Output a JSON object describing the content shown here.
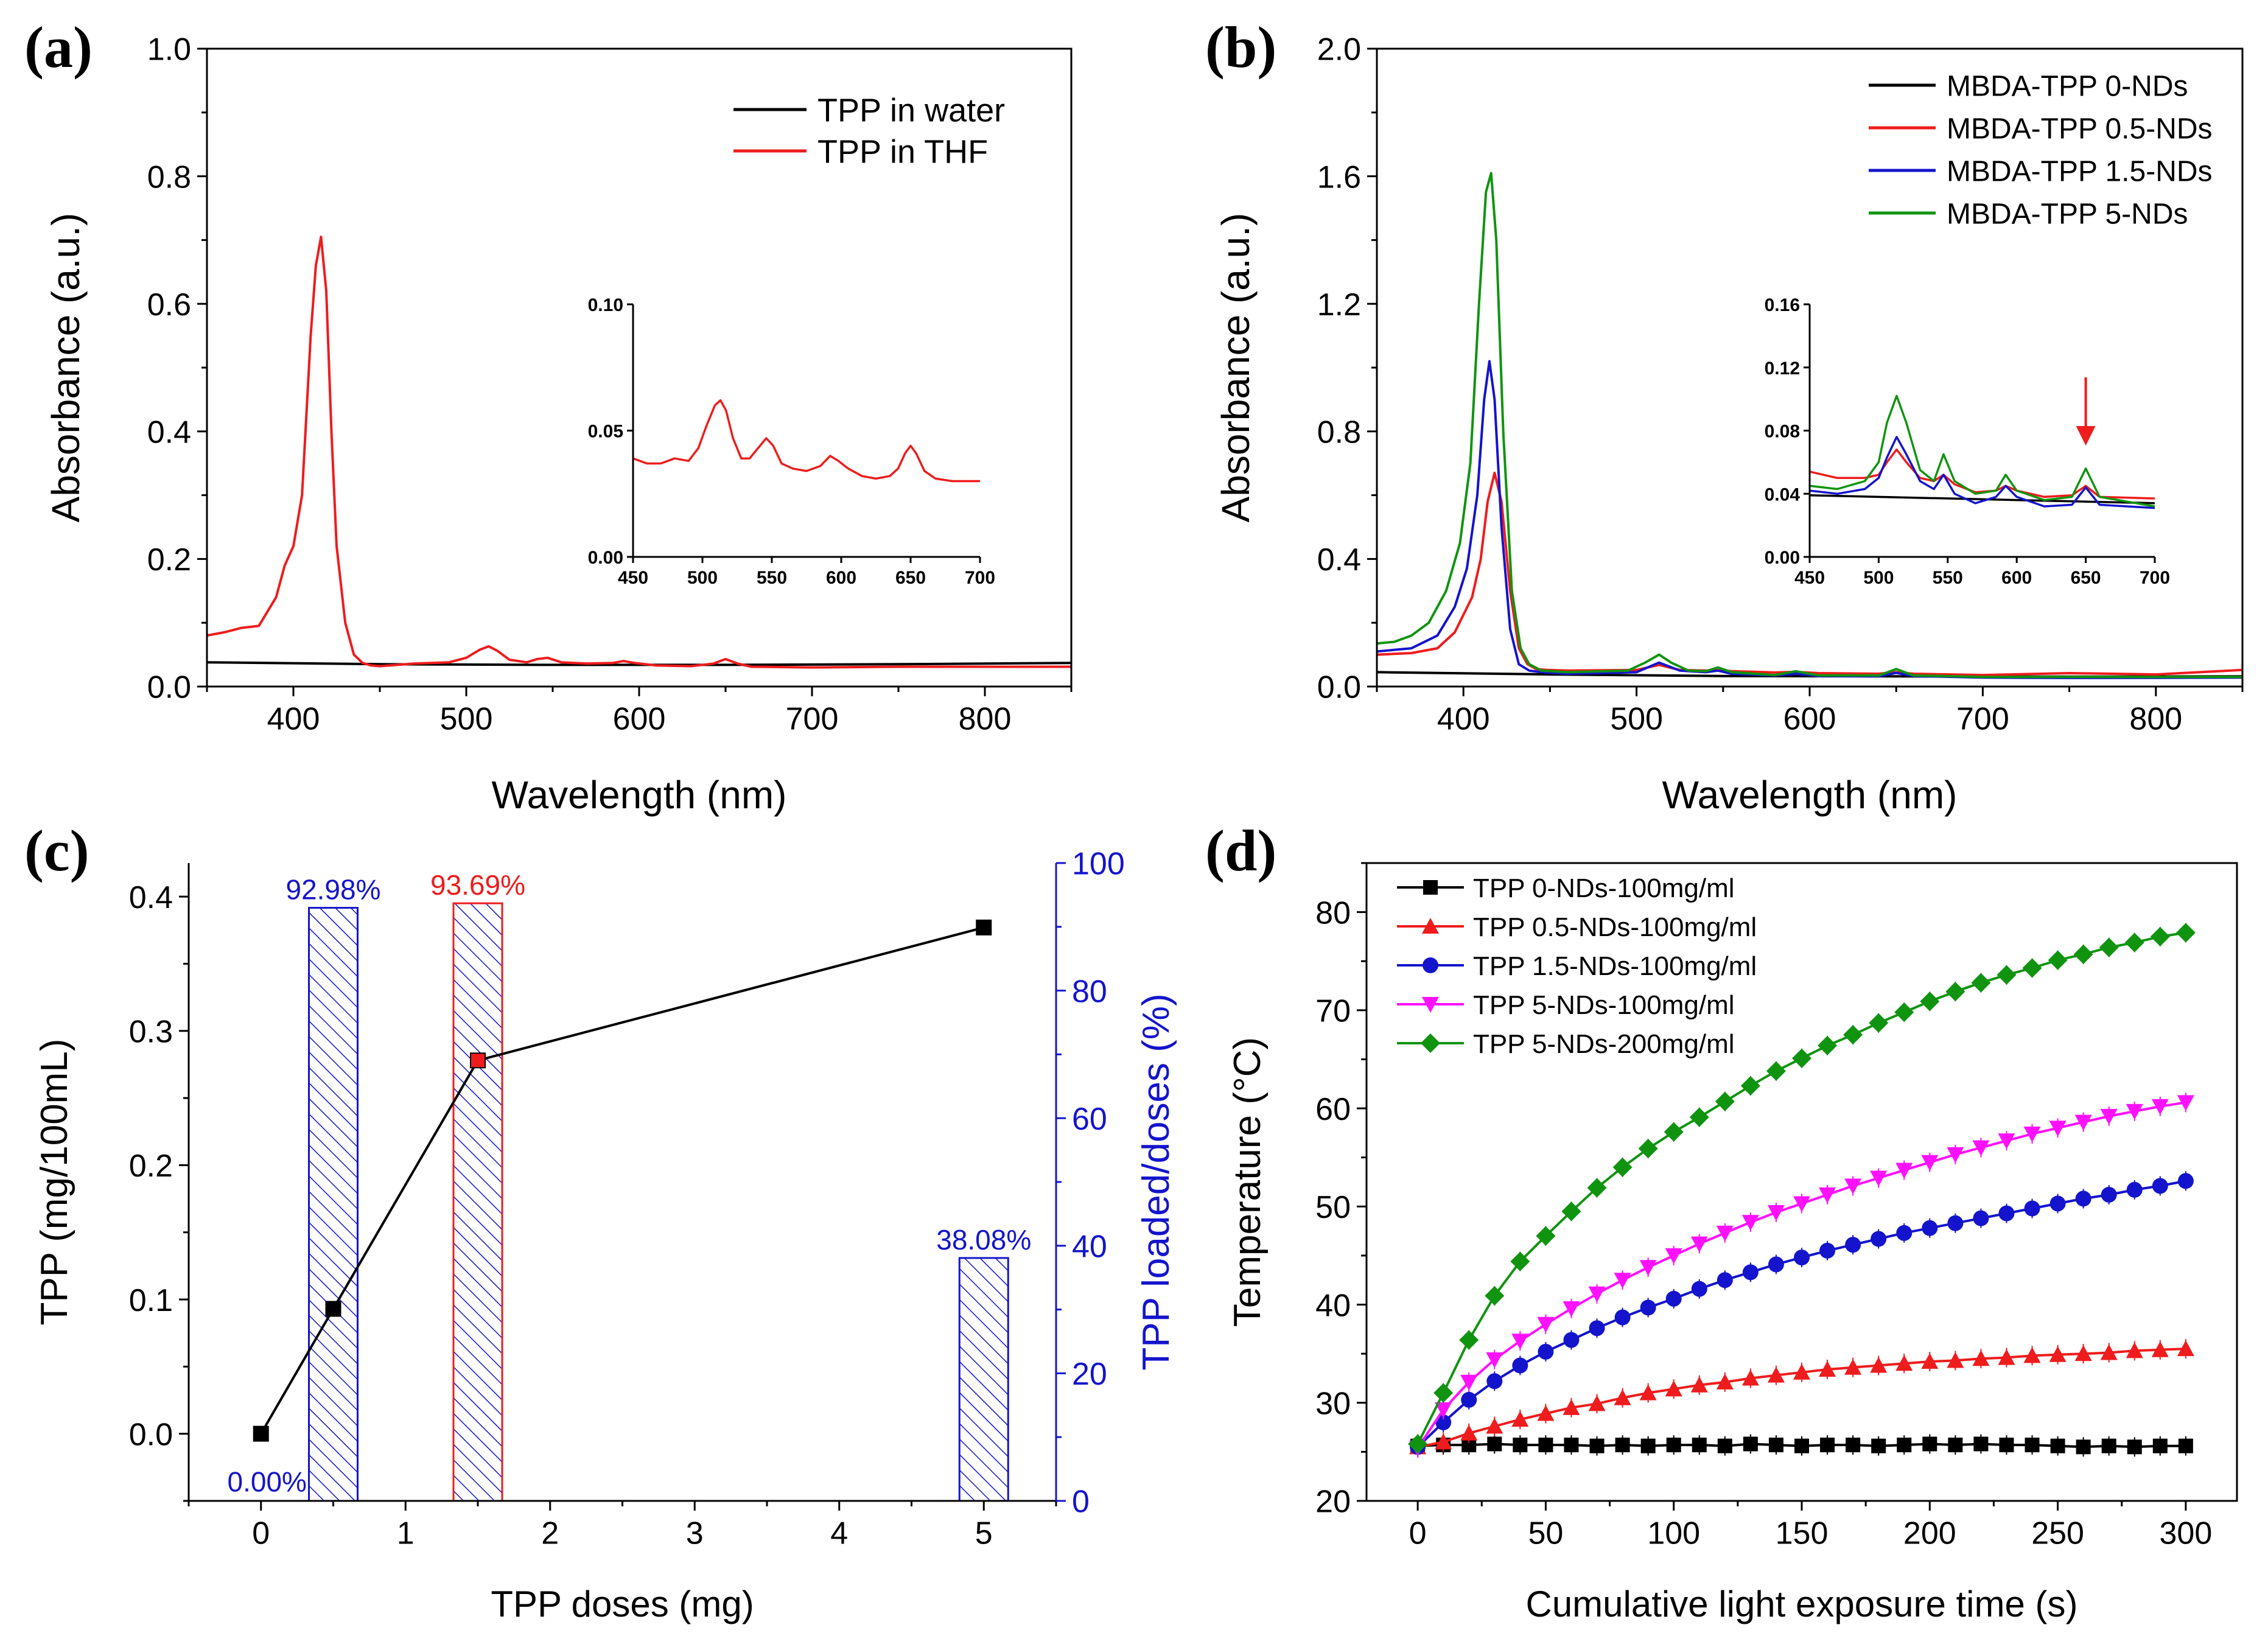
{
  "figure": {
    "panels": [
      "(a)",
      "(b)",
      "(c)",
      "(d)"
    ]
  },
  "chart_data": [
    {
      "id": "a",
      "type": "line",
      "label": "(a)",
      "xlabel": "Wavelength (nm)",
      "ylabel": "Absorbance (a.u.)",
      "xlim": [
        350,
        850
      ],
      "ylim": [
        0,
        1.0
      ],
      "xticks": [
        400,
        500,
        600,
        700,
        800
      ],
      "yticks": [
        0.0,
        0.2,
        0.4,
        0.6,
        0.8,
        1.0
      ],
      "ytick_labels": [
        "0.0",
        "0.2",
        "0.4",
        "0.6",
        "0.8",
        "1.0"
      ],
      "legend_position": "top-right",
      "series": [
        {
          "name": "TPP in water",
          "color": "#000000",
          "x": [
            350,
            450,
            550,
            650,
            750,
            850
          ],
          "y": [
            0.038,
            0.035,
            0.034,
            0.034,
            0.035,
            0.037
          ]
        },
        {
          "name": "TPP in THF",
          "color": "#ee1c1c",
          "x": [
            350,
            360,
            370,
            380,
            390,
            395,
            400,
            405,
            410,
            413,
            416,
            419,
            422,
            425,
            430,
            435,
            440,
            445,
            450,
            470,
            490,
            500,
            508,
            513,
            518,
            525,
            535,
            541,
            547,
            555,
            570,
            585,
            591,
            597,
            610,
            630,
            643,
            650,
            657,
            665,
            700,
            750,
            850
          ],
          "y": [
            0.08,
            0.085,
            0.092,
            0.095,
            0.14,
            0.19,
            0.22,
            0.3,
            0.55,
            0.66,
            0.705,
            0.62,
            0.4,
            0.22,
            0.1,
            0.05,
            0.037,
            0.033,
            0.032,
            0.036,
            0.038,
            0.045,
            0.058,
            0.063,
            0.056,
            0.042,
            0.038,
            0.043,
            0.045,
            0.038,
            0.036,
            0.037,
            0.04,
            0.037,
            0.033,
            0.032,
            0.036,
            0.043,
            0.036,
            0.031,
            0.03,
            0.031,
            0.031
          ]
        }
      ],
      "inset": {
        "xlim": [
          450,
          700
        ],
        "ylim": [
          0,
          0.1
        ],
        "xticks": [
          450,
          500,
          550,
          600,
          650,
          700
        ],
        "yticks": [
          0.0,
          0.05,
          0.1
        ],
        "ytick_labels": [
          "0.00",
          "0.05",
          "0.10"
        ],
        "series": [
          {
            "name": "TPP in THF",
            "color": "#ee1c1c",
            "x": [
              450,
              460,
              470,
              480,
              490,
              497,
              503,
              509,
              513,
              517,
              522,
              528,
              534,
              540,
              546,
              551,
              557,
              565,
              575,
              585,
              592,
              598,
              605,
              615,
              625,
              635,
              641,
              646,
              650,
              654,
              660,
              668,
              680,
              700
            ],
            "y": [
              0.039,
              0.037,
              0.037,
              0.039,
              0.038,
              0.043,
              0.052,
              0.06,
              0.062,
              0.058,
              0.047,
              0.039,
              0.039,
              0.043,
              0.047,
              0.044,
              0.037,
              0.035,
              0.034,
              0.036,
              0.04,
              0.038,
              0.035,
              0.032,
              0.031,
              0.032,
              0.035,
              0.041,
              0.044,
              0.041,
              0.034,
              0.031,
              0.03,
              0.03
            ]
          }
        ]
      }
    },
    {
      "id": "b",
      "type": "line",
      "label": "(b)",
      "xlabel": "Wavelength (nm)",
      "ylabel": "Absorbance (a.u.)",
      "xlim": [
        350,
        850
      ],
      "ylim": [
        0,
        2.0
      ],
      "xticks": [
        400,
        500,
        600,
        700,
        800
      ],
      "yticks": [
        0.0,
        0.4,
        0.8,
        1.2,
        1.6,
        2.0
      ],
      "ytick_labels": [
        "0.0",
        "0.4",
        "0.8",
        "1.2",
        "1.6",
        "2.0"
      ],
      "legend_position": "top-right",
      "series": [
        {
          "name": "MBDA-TPP 0-NDs",
          "color": "#000000",
          "x": [
            350,
            450,
            550,
            650,
            750,
            850
          ],
          "y": [
            0.045,
            0.038,
            0.033,
            0.032,
            0.031,
            0.032
          ]
        },
        {
          "name": "MBDA-TPP 0.5-NDs",
          "color": "#ee1c1c",
          "x": [
            350,
            370,
            385,
            395,
            405,
            410,
            414,
            418,
            422,
            427,
            432,
            437,
            442,
            448,
            460,
            500,
            513,
            525,
            540,
            547,
            555,
            580,
            592,
            605,
            640,
            650,
            660,
            700,
            750,
            800,
            850
          ],
          "y": [
            0.1,
            0.105,
            0.12,
            0.17,
            0.28,
            0.4,
            0.58,
            0.67,
            0.58,
            0.3,
            0.12,
            0.07,
            0.055,
            0.052,
            0.05,
            0.052,
            0.068,
            0.052,
            0.05,
            0.051,
            0.048,
            0.044,
            0.046,
            0.042,
            0.04,
            0.045,
            0.04,
            0.036,
            0.042,
            0.038,
            0.052
          ]
        },
        {
          "name": "MBDA-TPP 1.5-NDs",
          "color": "#1414cc",
          "x": [
            350,
            370,
            385,
            395,
            402,
            408,
            412,
            415,
            418,
            422,
            427,
            432,
            438,
            445,
            460,
            500,
            513,
            525,
            540,
            547,
            555,
            580,
            592,
            605,
            640,
            650,
            660,
            700,
            750,
            850
          ],
          "y": [
            0.11,
            0.12,
            0.16,
            0.25,
            0.37,
            0.6,
            0.9,
            1.02,
            0.9,
            0.5,
            0.18,
            0.07,
            0.05,
            0.045,
            0.04,
            0.045,
            0.075,
            0.05,
            0.045,
            0.05,
            0.04,
            0.035,
            0.04,
            0.033,
            0.032,
            0.043,
            0.033,
            0.028,
            0.027,
            0.028
          ]
        },
        {
          "name": "MBDA-TPP 5-NDs",
          "color": "#109410",
          "x": [
            350,
            360,
            370,
            380,
            390,
            398,
            404,
            409,
            413,
            416,
            419,
            423,
            428,
            433,
            438,
            445,
            460,
            495,
            505,
            513,
            520,
            530,
            540,
            547,
            555,
            580,
            592,
            605,
            640,
            650,
            660,
            700,
            750,
            850
          ],
          "y": [
            0.135,
            0.14,
            0.16,
            0.2,
            0.3,
            0.45,
            0.7,
            1.2,
            1.55,
            1.61,
            1.4,
            0.8,
            0.3,
            0.12,
            0.07,
            0.05,
            0.045,
            0.05,
            0.075,
            0.1,
            0.075,
            0.05,
            0.048,
            0.06,
            0.045,
            0.036,
            0.048,
            0.035,
            0.035,
            0.055,
            0.035,
            0.03,
            0.03,
            0.03
          ]
        }
      ],
      "inset": {
        "xlim": [
          450,
          700
        ],
        "ylim": [
          0,
          0.16
        ],
        "xticks": [
          450,
          500,
          550,
          600,
          650,
          700
        ],
        "yticks": [
          0.0,
          0.04,
          0.08,
          0.12,
          0.16
        ],
        "ytick_labels": [
          "0.00",
          "0.04",
          "0.08",
          "0.12",
          "0.16"
        ],
        "arrow_at_x": 650,
        "series": [
          {
            "name": "MBDA-TPP 0-NDs",
            "color": "#000000",
            "x": [
              450,
              700
            ],
            "y": [
              0.039,
              0.034
            ]
          },
          {
            "name": "MBDA-TPP 0.5-NDs",
            "color": "#ee1c1c",
            "x": [
              450,
              470,
              490,
              500,
              506,
              513,
              520,
              530,
              540,
              547,
              555,
              570,
              585,
              592,
              600,
              620,
              640,
              650,
              660,
              700
            ],
            "y": [
              0.054,
              0.05,
              0.05,
              0.052,
              0.06,
              0.068,
              0.06,
              0.05,
              0.048,
              0.052,
              0.046,
              0.041,
              0.042,
              0.045,
              0.042,
              0.038,
              0.039,
              0.045,
              0.038,
              0.037
            ]
          },
          {
            "name": "MBDA-TPP 1.5-NDs",
            "color": "#1414cc",
            "x": [
              450,
              470,
              490,
              500,
              506,
              513,
              520,
              530,
              540,
              547,
              555,
              570,
              585,
              592,
              600,
              620,
              640,
              650,
              660,
              700
            ],
            "y": [
              0.042,
              0.04,
              0.043,
              0.05,
              0.063,
              0.076,
              0.065,
              0.048,
              0.043,
              0.052,
              0.04,
              0.034,
              0.038,
              0.045,
              0.038,
              0.032,
              0.033,
              0.044,
              0.033,
              0.031
            ]
          },
          {
            "name": "MBDA-TPP 5-NDs",
            "color": "#109410",
            "x": [
              450,
              470,
              490,
              500,
              506,
              513,
              520,
              530,
              540,
              547,
              555,
              570,
              585,
              592,
              600,
              620,
              640,
              650,
              660,
              700
            ],
            "y": [
              0.045,
              0.043,
              0.048,
              0.06,
              0.085,
              0.102,
              0.085,
              0.055,
              0.048,
              0.065,
              0.048,
              0.04,
              0.042,
              0.052,
              0.042,
              0.036,
              0.038,
              0.056,
              0.038,
              0.032
            ]
          }
        ]
      }
    },
    {
      "id": "c",
      "type": "bar",
      "label": "(c)",
      "xlabel": "TPP doses (mg)",
      "ylabel": "TPP (mg/100mL)",
      "y2label": "TPP loaded/doses (%)",
      "xlim": [
        -0.5,
        5.5
      ],
      "ylim": [
        -0.05,
        0.425
      ],
      "y2lim": [
        0,
        100
      ],
      "xticks": [
        0,
        1,
        2,
        3,
        4,
        5
      ],
      "yticks": [
        0.0,
        0.1,
        0.2,
        0.3,
        0.4
      ],
      "ytick_labels": [
        "0.0",
        "0.1",
        "0.2",
        "0.3",
        "0.4"
      ],
      "y2ticks": [
        0,
        20,
        40,
        60,
        80,
        100
      ],
      "line_series": {
        "name": "TPP",
        "color": "#000000",
        "x": [
          0,
          0.5,
          1.5,
          5
        ],
        "y": [
          0.0,
          0.093,
          0.278,
          0.377
        ],
        "marker_colors": [
          "#000000",
          "#000000",
          "#ee1c1c",
          "#000000"
        ]
      },
      "bars": [
        {
          "x": 0.5,
          "value": 92.98,
          "label": "92.98%",
          "color": "#1414cc"
        },
        {
          "x": 1.5,
          "value": 93.69,
          "label": "93.69%",
          "color": "#ee1c1c"
        },
        {
          "x": 5,
          "value": 38.08,
          "label": "38.08%",
          "color": "#1414cc"
        }
      ],
      "annotations": [
        {
          "text": "0.00%",
          "x": 0,
          "color": "#1414cc"
        }
      ]
    },
    {
      "id": "d",
      "type": "line",
      "label": "(d)",
      "xlabel": "Cumulative light exposure time (s)",
      "ylabel": "Temperature (°C)",
      "xlim": [
        -20,
        320
      ],
      "ylim": [
        20,
        85
      ],
      "xticks": [
        0,
        50,
        100,
        150,
        200,
        250,
        300
      ],
      "yticks": [
        20,
        30,
        40,
        50,
        60,
        70,
        80
      ],
      "legend_position": "top-left",
      "x": [
        0,
        10,
        20,
        30,
        40,
        50,
        60,
        70,
        80,
        90,
        100,
        110,
        120,
        130,
        140,
        150,
        160,
        170,
        180,
        190,
        200,
        210,
        220,
        230,
        240,
        250,
        260,
        270,
        280,
        290,
        300
      ],
      "series": [
        {
          "name": "TPP 0-NDs-100mg/ml",
          "color": "#000000",
          "marker": "square",
          "y": [
            25.6,
            25.7,
            25.7,
            25.8,
            25.7,
            25.7,
            25.7,
            25.6,
            25.7,
            25.6,
            25.7,
            25.7,
            25.6,
            25.8,
            25.7,
            25.6,
            25.7,
            25.7,
            25.6,
            25.7,
            25.8,
            25.7,
            25.8,
            25.7,
            25.7,
            25.6,
            25.5,
            25.6,
            25.5,
            25.6,
            25.6
          ]
        },
        {
          "name": "TPP 0.5-NDs-100mg/ml",
          "color": "#ee1c1c",
          "marker": "triangle-up",
          "y": [
            25.5,
            26.0,
            26.9,
            27.6,
            28.3,
            28.9,
            29.5,
            29.9,
            30.5,
            31.0,
            31.4,
            31.8,
            32.1,
            32.5,
            32.8,
            33.1,
            33.4,
            33.6,
            33.8,
            34.0,
            34.2,
            34.3,
            34.5,
            34.6,
            34.8,
            34.9,
            35.0,
            35.1,
            35.3,
            35.4,
            35.5
          ]
        },
        {
          "name": "TPP 1.5-NDs-100mg/ml",
          "color": "#1414cc",
          "marker": "circle",
          "y": [
            25.5,
            28.0,
            30.3,
            32.2,
            33.8,
            35.2,
            36.4,
            37.6,
            38.7,
            39.7,
            40.6,
            41.6,
            42.5,
            43.3,
            44.1,
            44.8,
            45.5,
            46.1,
            46.7,
            47.3,
            47.8,
            48.3,
            48.8,
            49.3,
            49.8,
            50.3,
            50.8,
            51.2,
            51.7,
            52.1,
            52.6
          ]
        },
        {
          "name": "TPP 5-NDs-100mg/ml",
          "color": "#ff10ff",
          "marker": "triangle-down",
          "y": [
            25.4,
            29.3,
            32.1,
            34.4,
            36.3,
            38.0,
            39.6,
            41.1,
            42.5,
            43.8,
            45.0,
            46.2,
            47.3,
            48.4,
            49.4,
            50.3,
            51.2,
            52.1,
            52.9,
            53.7,
            54.5,
            55.3,
            56.0,
            56.7,
            57.4,
            58.0,
            58.6,
            59.2,
            59.7,
            60.2,
            60.6
          ]
        },
        {
          "name": "TPP 5-NDs-200mg/ml",
          "color": "#109410",
          "marker": "diamond",
          "y": [
            25.8,
            31.0,
            36.4,
            40.9,
            44.4,
            47.0,
            49.5,
            51.9,
            54.0,
            55.9,
            57.6,
            59.1,
            60.7,
            62.3,
            63.8,
            65.1,
            66.4,
            67.5,
            68.7,
            69.8,
            70.9,
            71.9,
            72.8,
            73.6,
            74.3,
            75.1,
            75.7,
            76.4,
            76.9,
            77.5,
            77.9
          ]
        }
      ]
    }
  ]
}
